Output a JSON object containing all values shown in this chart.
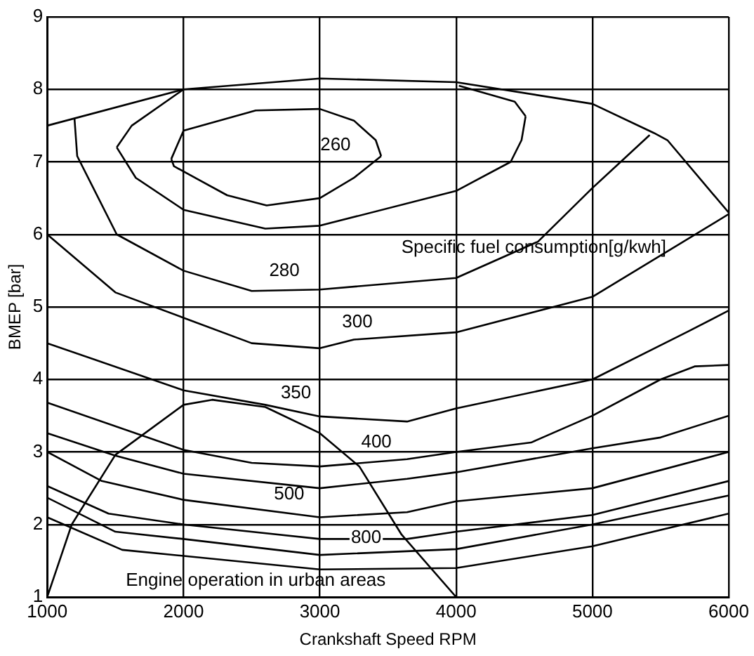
{
  "chart_data": {
    "type": "line",
    "xlabel": "Crankshaft Speed RPM",
    "ylabel": "BMEP [bar]",
    "xlim": [
      1000,
      6000
    ],
    "xticks": [
      1000,
      2000,
      3000,
      4000,
      5000,
      6000
    ],
    "ylim": [
      1,
      9
    ],
    "yticks": [
      1,
      2,
      3,
      4,
      5,
      6,
      7,
      8,
      9
    ],
    "grid": true,
    "series": [
      {
        "color": "#000000",
        "x": [
          1000,
          2000,
          3000,
          4000,
          5000,
          5450,
          5550,
          6000
        ],
        "values": [
          7.5,
          8.0,
          8.15,
          8.1,
          7.8,
          7.4,
          7.3,
          6.3
        ]
      },
      {
        "color": "#000000",
        "x": [
          1910,
          2000,
          2530,
          3000,
          3250,
          3410,
          3450
        ],
        "values": [
          7.04,
          7.43,
          7.71,
          7.73,
          7.57,
          7.3,
          7.08
        ]
      },
      {
        "color": "#000000",
        "x": [
          1910,
          1930,
          2320,
          2610,
          3000,
          3250,
          3450
        ],
        "values": [
          7.04,
          6.94,
          6.54,
          6.4,
          6.5,
          6.78,
          7.08
        ]
      },
      {
        "color": "#000000",
        "x": [
          1510,
          1620,
          2000
        ],
        "values": [
          7.2,
          7.5,
          8.0
        ]
      },
      {
        "color": "#000000",
        "x": [
          1510,
          1650,
          2000,
          2600,
          3000,
          4000,
          4400,
          4480,
          4510
        ],
        "values": [
          7.2,
          6.78,
          6.34,
          6.08,
          6.12,
          6.6,
          7.0,
          7.3,
          7.63
        ]
      },
      {
        "color": "#000000",
        "x": [
          4020,
          4430,
          4510
        ],
        "values": [
          8.05,
          7.83,
          7.63
        ]
      },
      {
        "color": "#000000",
        "x": [
          1200,
          1220,
          1510,
          2000,
          2500,
          3000,
          4000,
          4600,
          5000,
          5420
        ],
        "values": [
          7.6,
          7.08,
          6.0,
          5.5,
          5.22,
          5.24,
          5.4,
          5.9,
          6.64,
          7.37
        ]
      },
      {
        "color": "#000000",
        "x": [
          1000,
          1500,
          2000,
          2500,
          3000,
          3250,
          4000,
          5000,
          6000
        ],
        "values": [
          6.0,
          5.2,
          4.85,
          4.5,
          4.43,
          4.55,
          4.65,
          5.14,
          6.28
        ]
      },
      {
        "color": "#000000",
        "x": [
          1000,
          2000,
          2600,
          3000,
          3640,
          4000,
          5000,
          5700,
          6000
        ],
        "values": [
          4.5,
          3.85,
          3.65,
          3.49,
          3.42,
          3.6,
          4.0,
          4.66,
          4.95
        ]
      },
      {
        "color": "#000000",
        "x": [
          1000,
          2000,
          2500,
          3000,
          3640,
          4000,
          4550,
          5000,
          5500,
          5750,
          6000
        ],
        "values": [
          3.68,
          3.03,
          2.85,
          2.8,
          2.9,
          3.0,
          3.13,
          3.5,
          4.0,
          4.18,
          4.2
        ]
      },
      {
        "color": "#000000",
        "x": [
          1000,
          1500,
          2000,
          3000,
          3640,
          4000,
          5000,
          5500,
          6000
        ],
        "values": [
          3.26,
          2.95,
          2.7,
          2.5,
          2.63,
          2.72,
          3.05,
          3.2,
          3.5
        ]
      },
      {
        "color": "#000000",
        "x": [
          1000,
          1400,
          2000,
          3000,
          3640,
          4000,
          5000,
          6000
        ],
        "values": [
          3.0,
          2.6,
          2.34,
          2.1,
          2.17,
          2.32,
          2.5,
          3.0
        ]
      },
      {
        "color": "#000000",
        "x": [
          1000,
          1450,
          2000,
          3000,
          3640,
          4000,
          5000,
          6000
        ],
        "values": [
          2.53,
          2.15,
          2.0,
          1.8,
          1.8,
          1.9,
          2.13,
          2.6
        ]
      },
      {
        "color": "#000000",
        "x": [
          1000,
          1500,
          2000,
          3000,
          4000,
          5000,
          6000
        ],
        "values": [
          2.37,
          1.9,
          1.8,
          1.58,
          1.66,
          2.0,
          2.4
        ]
      },
      {
        "color": "#000000",
        "x": [
          1000,
          1550,
          3000,
          4000,
          5000,
          6000
        ],
        "values": [
          2.1,
          1.65,
          1.38,
          1.4,
          1.7,
          2.15
        ]
      },
      {
        "color": "#000000",
        "x": [
          1000,
          1180,
          1500,
          2000,
          2210,
          2600,
          3000,
          3290,
          3600,
          4000
        ],
        "values": [
          1.0,
          2.0,
          2.96,
          3.65,
          3.72,
          3.62,
          3.26,
          2.8,
          1.86,
          1.0
        ]
      }
    ],
    "annotations": [
      "260",
      "280",
      "Specific fuel consumption[g/kwh]",
      "300",
      "350",
      "400",
      "500",
      "800",
      "Engine operation in urban areas"
    ]
  }
}
